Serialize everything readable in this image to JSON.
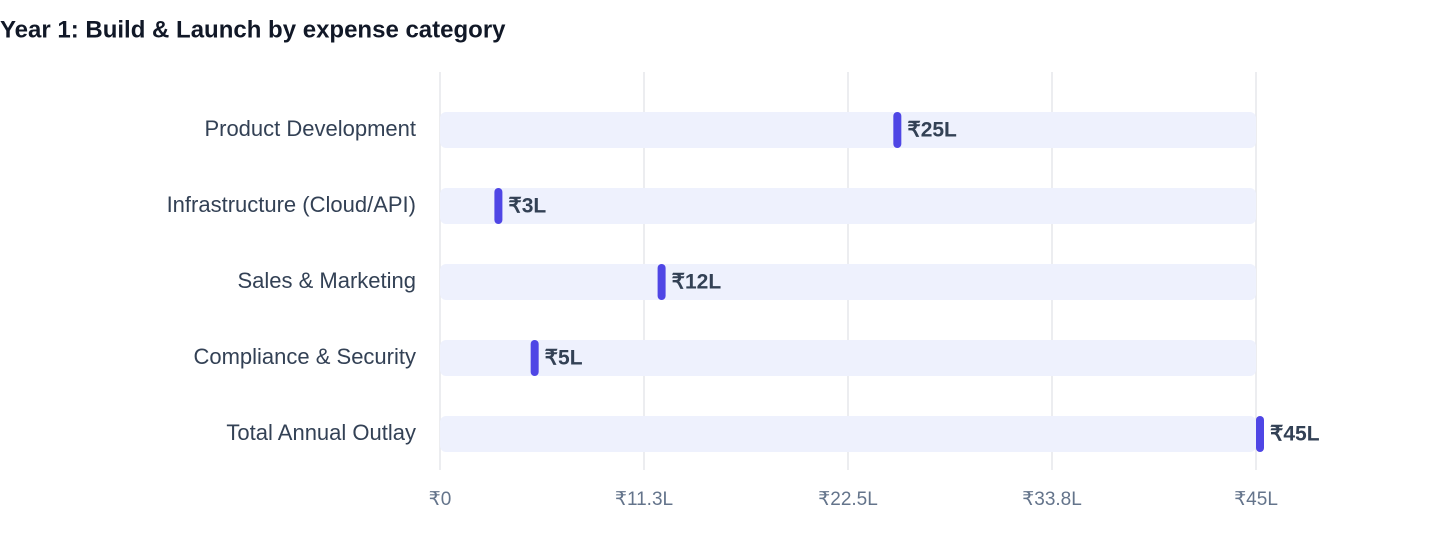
{
  "chart_data": {
    "type": "dot",
    "title": "Year 1: Build & Launch by expense category",
    "categories": [
      "Product Development",
      "Infrastructure (Cloud/API)",
      "Sales & Marketing",
      "Compliance & Security",
      "Total Annual Outlay"
    ],
    "values": [
      25,
      3,
      12,
      5,
      45
    ],
    "value_labels": [
      "₹25L",
      "₹3L",
      "₹12L",
      "₹5L",
      "₹45L"
    ],
    "color": "#4f46e5",
    "track_color": "#eef1fd",
    "xlim": [
      0,
      45
    ],
    "xticks": [
      {
        "value": 0,
        "label": "₹0"
      },
      {
        "value": 11.25,
        "label": "₹11.3L"
      },
      {
        "value": 22.5,
        "label": "₹22.5L"
      },
      {
        "value": 33.75,
        "label": "₹33.8L"
      },
      {
        "value": 45,
        "label": "₹45L"
      }
    ],
    "grid": true
  }
}
